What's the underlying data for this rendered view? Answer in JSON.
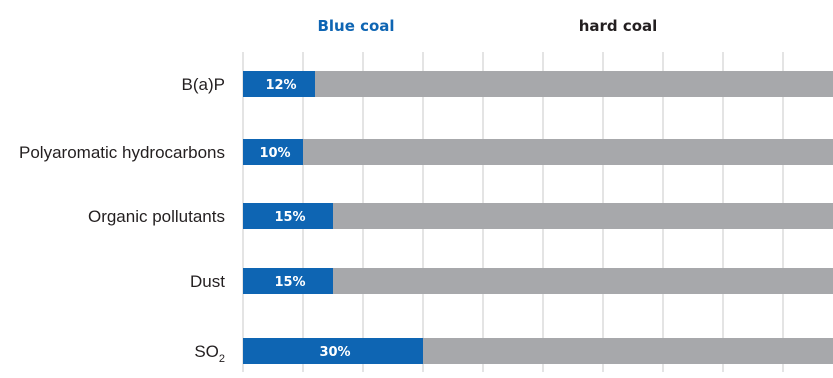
{
  "legend": {
    "blue_label": "Blue coal",
    "hard_label": "hard coal"
  },
  "colors": {
    "blue": "#0e65b3",
    "hard": "#a7a8ab",
    "grid": "#c8c8c8",
    "text": "#231f20"
  },
  "chart_data": {
    "type": "bar",
    "orientation": "horizontal",
    "stacked": true,
    "categories": [
      "B(a)P",
      "Polyaromatic hydrocarbons",
      "Organic pollutants",
      "Dust",
      "SO2"
    ],
    "series": [
      {
        "name": "Blue coal",
        "values": [
          12,
          10,
          15,
          15,
          30
        ]
      },
      {
        "name": "hard coal",
        "values": [
          88,
          90,
          85,
          85,
          70
        ]
      }
    ],
    "value_labels": [
      "12%",
      "10%",
      "15%",
      "15%",
      "30%"
    ],
    "xlim": [
      0,
      100
    ],
    "grid": true,
    "legend_position": "top"
  }
}
